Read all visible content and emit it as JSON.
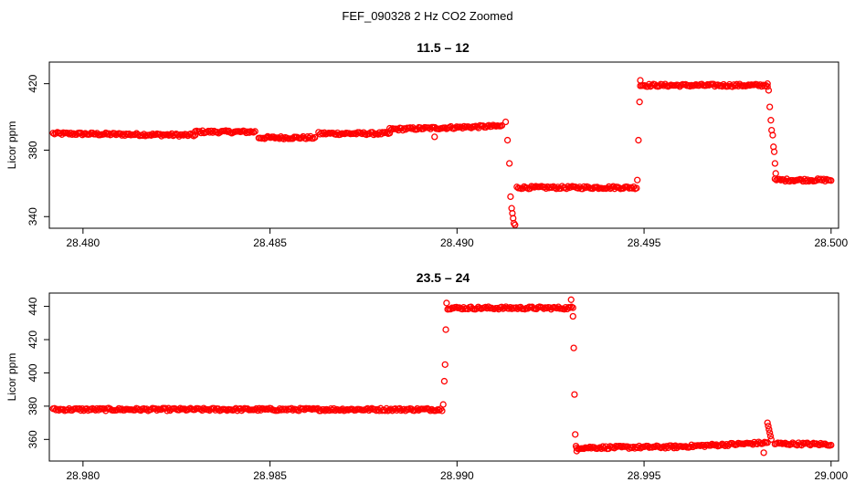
{
  "figure": {
    "title": "FEF_090328  2 Hz CO2 Zoomed"
  },
  "chart_data": [
    {
      "type": "scatter",
      "title": "11.5 – 12",
      "xlabel": "",
      "ylabel": "Licor ppm",
      "xlim": [
        28.4791,
        28.5002
      ],
      "ylim": [
        333,
        433
      ],
      "x_ticks": [
        28.48,
        28.485,
        28.49,
        28.495,
        28.5
      ],
      "x_tick_labels": [
        "28.480",
        "28.485",
        "28.490",
        "28.495",
        "28.500"
      ],
      "y_ticks": [
        340,
        380,
        420
      ],
      "y_tick_labels": [
        "340",
        "380",
        "420"
      ],
      "marker": "open-circle",
      "color": "#ff0000",
      "grid": false,
      "segments": [
        {
          "x": [
            28.4792,
            28.483
          ],
          "y": [
            390.0,
            389.0
          ]
        },
        {
          "x": [
            28.483,
            28.4846
          ],
          "y": [
            391.0,
            391.0
          ]
        },
        {
          "x": [
            28.4847,
            28.4862
          ],
          "y": [
            387.5,
            387.5
          ]
        },
        {
          "x": [
            28.4863,
            28.4882
          ],
          "y": [
            390.0,
            390.0
          ]
        },
        {
          "x": [
            28.4882,
            28.4912
          ],
          "y": [
            392.5,
            394.5
          ]
        },
        {
          "x": [
            28.4916,
            28.4948
          ],
          "y": [
            357.5,
            357.5
          ]
        },
        {
          "x": [
            28.4949,
            28.4983
          ],
          "y": [
            419.0,
            419.0
          ]
        },
        {
          "x": [
            28.4985,
            28.5
          ],
          "y": [
            362.0,
            362.0
          ]
        }
      ],
      "transition_points": [
        {
          "x": 28.4894,
          "y": 388.0
        },
        {
          "x": 28.4913,
          "y": 397.0
        },
        {
          "x": 28.49135,
          "y": 386.0
        },
        {
          "x": 28.4914,
          "y": 372.0
        },
        {
          "x": 28.49143,
          "y": 352.0
        },
        {
          "x": 28.49146,
          "y": 345.0
        },
        {
          "x": 28.49148,
          "y": 342.0
        },
        {
          "x": 28.4915,
          "y": 339.0
        },
        {
          "x": 28.49152,
          "y": 336.0
        },
        {
          "x": 28.49155,
          "y": 335.0
        },
        {
          "x": 28.49482,
          "y": 362.0
        },
        {
          "x": 28.49485,
          "y": 386.0
        },
        {
          "x": 28.49488,
          "y": 409.0
        },
        {
          "x": 28.4949,
          "y": 422.0
        },
        {
          "x": 28.4983,
          "y": 420.0
        },
        {
          "x": 28.49833,
          "y": 416.0
        },
        {
          "x": 28.49836,
          "y": 406.0
        },
        {
          "x": 28.49839,
          "y": 398.0
        },
        {
          "x": 28.49841,
          "y": 392.0
        },
        {
          "x": 28.49844,
          "y": 389.0
        },
        {
          "x": 28.49846,
          "y": 382.0
        },
        {
          "x": 28.49848,
          "y": 379.0
        },
        {
          "x": 28.4985,
          "y": 372.0
        },
        {
          "x": 28.49852,
          "y": 366.0
        }
      ]
    },
    {
      "type": "scatter",
      "title": "23.5 – 24",
      "xlabel": "",
      "ylabel": "Licor ppm",
      "xlim": [
        28.9791,
        29.0002
      ],
      "ylim": [
        347,
        448
      ],
      "x_ticks": [
        28.98,
        28.985,
        28.99,
        28.995,
        29.0
      ],
      "x_tick_labels": [
        "28.980",
        "28.985",
        "28.990",
        "28.995",
        "29.000"
      ],
      "y_ticks": [
        360,
        380,
        400,
        420,
        440
      ],
      "y_tick_labels": [
        "360",
        "380",
        "400",
        "420",
        "440"
      ],
      "marker": "open-circle",
      "color": "#ff0000",
      "grid": false,
      "segments": [
        {
          "x": [
            28.9792,
            28.9896
          ],
          "y": [
            378.0,
            378.0
          ]
        },
        {
          "x": [
            28.98975,
            28.9931
          ],
          "y": [
            439.0,
            439.0
          ]
        },
        {
          "x": [
            28.9932,
            28.9958
          ],
          "y": [
            355.0,
            355.5
          ]
        },
        {
          "x": [
            28.9958,
            28.9983
          ],
          "y": [
            355.5,
            358.0
          ]
        },
        {
          "x": [
            28.9985,
            29.0
          ],
          "y": [
            357.5,
            357.0
          ]
        }
      ],
      "transition_points": [
        {
          "x": 28.98963,
          "y": 381.0
        },
        {
          "x": 28.98966,
          "y": 395.0
        },
        {
          "x": 28.98968,
          "y": 405.0
        },
        {
          "x": 28.9897,
          "y": 426.0
        },
        {
          "x": 28.98972,
          "y": 442.0
        },
        {
          "x": 28.99305,
          "y": 444.0
        },
        {
          "x": 28.9931,
          "y": 434.0
        },
        {
          "x": 28.99312,
          "y": 415.0
        },
        {
          "x": 28.99314,
          "y": 387.0
        },
        {
          "x": 28.99316,
          "y": 363.0
        },
        {
          "x": 28.99318,
          "y": 356.0
        },
        {
          "x": 28.9932,
          "y": 353.0
        },
        {
          "x": 28.9983,
          "y": 370.0
        },
        {
          "x": 28.99832,
          "y": 368.0
        },
        {
          "x": 28.99834,
          "y": 366.0
        },
        {
          "x": 28.99836,
          "y": 364.0
        },
        {
          "x": 28.99838,
          "y": 362.0
        },
        {
          "x": 28.9984,
          "y": 360.0
        },
        {
          "x": 28.9982,
          "y": 352.0
        }
      ]
    }
  ]
}
